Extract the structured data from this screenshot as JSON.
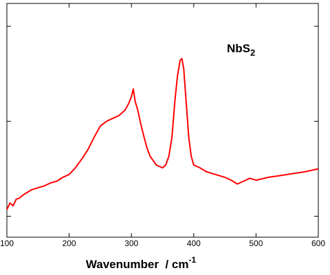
{
  "chart_data": {
    "type": "line",
    "annotation": {
      "text": "NbS",
      "subscript": "2"
    },
    "x_label": {
      "text": "Wavenumber  / cm",
      "superscript": "-1"
    },
    "x": [
      100,
      105,
      110,
      115,
      120,
      125,
      130,
      140,
      150,
      160,
      170,
      180,
      190,
      200,
      210,
      220,
      230,
      240,
      250,
      260,
      270,
      280,
      290,
      295,
      300,
      303,
      306,
      310,
      315,
      320,
      325,
      330,
      340,
      350,
      355,
      360,
      365,
      370,
      374,
      378,
      381,
      384,
      388,
      392,
      396,
      400,
      410,
      420,
      430,
      440,
      450,
      460,
      470,
      480,
      490,
      500,
      520,
      540,
      560,
      580,
      600
    ],
    "series": [
      {
        "color": "#ff0000",
        "values": [
          1.07,
          1.14,
          1.11,
          1.18,
          1.19,
          1.22,
          1.24,
          1.28,
          1.3,
          1.32,
          1.35,
          1.37,
          1.41,
          1.44,
          1.51,
          1.6,
          1.7,
          1.83,
          1.95,
          2.0,
          2.03,
          2.06,
          2.12,
          2.18,
          2.26,
          2.34,
          2.21,
          2.12,
          1.97,
          1.84,
          1.72,
          1.63,
          1.54,
          1.51,
          1.54,
          1.63,
          1.83,
          2.23,
          2.48,
          2.64,
          2.66,
          2.55,
          2.19,
          1.83,
          1.63,
          1.54,
          1.51,
          1.47,
          1.45,
          1.43,
          1.41,
          1.38,
          1.34,
          1.37,
          1.4,
          1.38,
          1.41,
          1.43,
          1.45,
          1.47,
          1.5
        ]
      }
    ],
    "xlim": [
      100,
      600
    ],
    "xticks": [
      100,
      200,
      300,
      400,
      500,
      600
    ],
    "ylim": [
      0.78,
      3.24
    ],
    "yticks": [
      1,
      2,
      3
    ]
  }
}
